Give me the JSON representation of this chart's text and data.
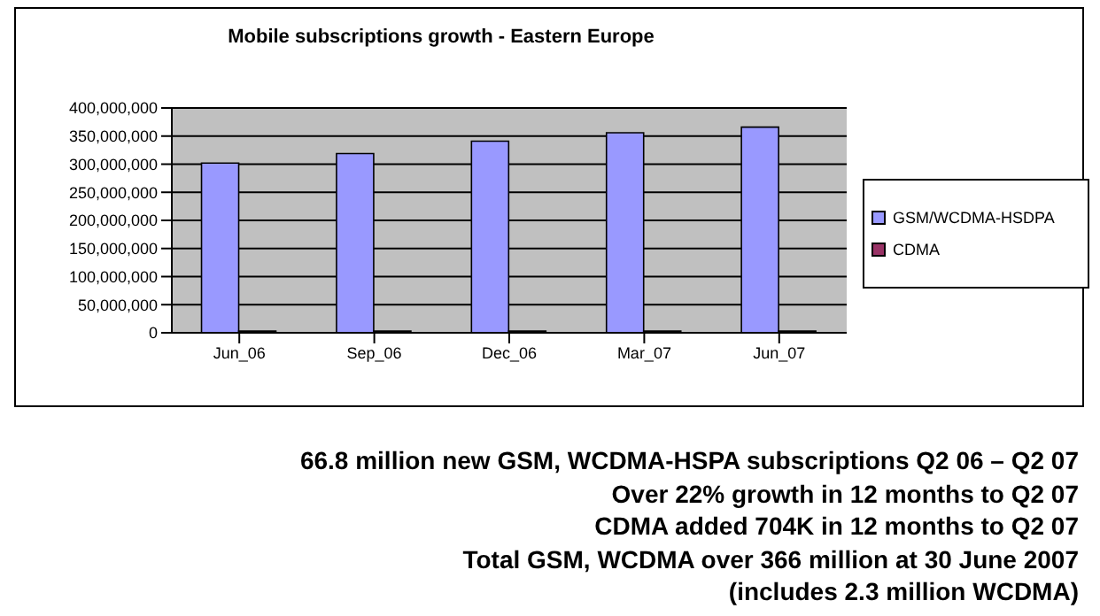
{
  "chart_data": {
    "type": "bar",
    "title": "Mobile subscriptions growth - Eastern Europe",
    "categories": [
      "Jun_06",
      "Sep_06",
      "Dec_06",
      "Mar_07",
      "Jun_07"
    ],
    "series": [
      {
        "name": "GSM/WCDMA-HSDPA",
        "color": "#9999ff",
        "values": [
          302000000,
          319000000,
          341000000,
          356000000,
          366000000
        ]
      },
      {
        "name": "CDMA",
        "color": "#993366",
        "values": [
          3000000,
          3000000,
          3000000,
          3000000,
          3000000
        ]
      }
    ],
    "ylim": [
      0,
      400000000
    ],
    "yticks": [
      0,
      {
        "value": 50000000,
        "label": "50,000,000"
      },
      {
        "value": 100000000,
        "label": "100,000,000"
      },
      {
        "value": 150000000,
        "label": "150,000,000"
      },
      {
        "value": 200000000,
        "label": "200,000,000"
      },
      {
        "value": 250000000,
        "label": "250,000,000"
      },
      {
        "value": 300000000,
        "label": "300,000,000"
      },
      {
        "value": 350000000,
        "label": "350,000,000"
      },
      {
        "value": 400000000,
        "label": "400,000,000"
      }
    ],
    "grid": "y",
    "legend": "right",
    "annotations": [
      "66.8 million new GSM, WCDMA-HSPA subscriptions Q2 06 – Q2 07",
      "Over 22% growth in 12 months to Q2 07",
      "CDMA added 704K in 12 months to Q2 07",
      "Total GSM, WCDMA over 366 million at 30 June 2007",
      "(includes 2.3 million WCDMA)"
    ]
  }
}
